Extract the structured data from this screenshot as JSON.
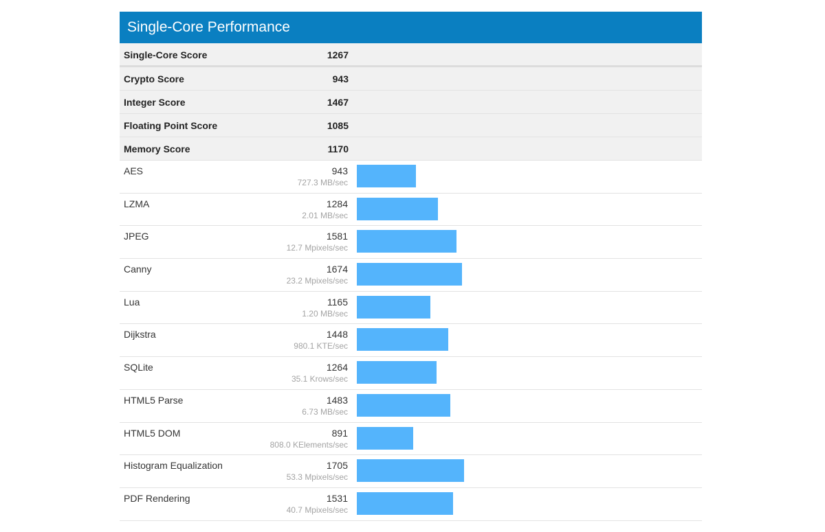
{
  "header": {
    "title": "Single-Core Performance"
  },
  "summary": [
    {
      "label": "Single-Core Score",
      "value": "1267"
    },
    {
      "label": "Crypto Score",
      "value": "943"
    },
    {
      "label": "Integer Score",
      "value": "1467"
    },
    {
      "label": "Floating Point Score",
      "value": "1085"
    },
    {
      "label": "Memory Score",
      "value": "1170"
    }
  ],
  "bar_color": "#54b4fc",
  "header_color": "#0a7fc1",
  "bar_scale_max": 1800,
  "benchmarks": [
    {
      "name": "AES",
      "score": 943,
      "rate": "727.3 MB/sec"
    },
    {
      "name": "LZMA",
      "score": 1284,
      "rate": "2.01 MB/sec"
    },
    {
      "name": "JPEG",
      "score": 1581,
      "rate": "12.7 Mpixels/sec"
    },
    {
      "name": "Canny",
      "score": 1674,
      "rate": "23.2 Mpixels/sec"
    },
    {
      "name": "Lua",
      "score": 1165,
      "rate": "1.20 MB/sec"
    },
    {
      "name": "Dijkstra",
      "score": 1448,
      "rate": "980.1 KTE/sec"
    },
    {
      "name": "SQLite",
      "score": 1264,
      "rate": "35.1 Krows/sec"
    },
    {
      "name": "HTML5 Parse",
      "score": 1483,
      "rate": "6.73 MB/sec"
    },
    {
      "name": "HTML5 DOM",
      "score": 891,
      "rate": "808.0 KElements/sec"
    },
    {
      "name": "Histogram Equalization",
      "score": 1705,
      "rate": "53.3 Mpixels/sec"
    },
    {
      "name": "PDF Rendering",
      "score": 1531,
      "rate": "40.7 Mpixels/sec"
    }
  ]
}
